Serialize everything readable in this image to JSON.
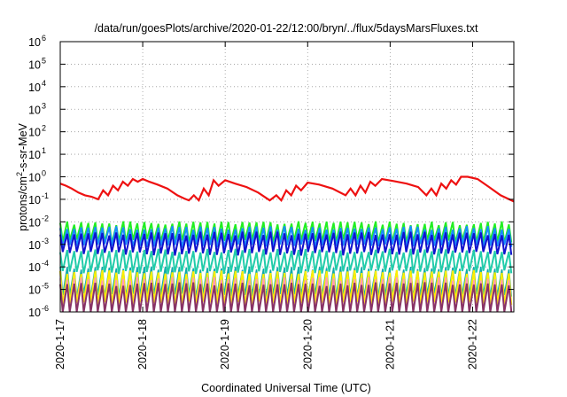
{
  "chart_data": {
    "type": "line",
    "title": "/data/run/goesPlots/archive/2020-01-22/12:00/bryn/../flux/5daysMarsFluxes.txt",
    "xlabel": "Coordinated Universal Time (UTC)",
    "ylabel": "protons/cm²-s-sr-MeV",
    "y_scale": "log",
    "ylim": [
      1e-06,
      1000000.0
    ],
    "xlim": [
      0,
      5.5
    ],
    "x_ticks": [
      {
        "value": 0,
        "label": "2020-1-17"
      },
      {
        "value": 1,
        "label": "2020-1-18"
      },
      {
        "value": 2,
        "label": "2020-1-19"
      },
      {
        "value": 3,
        "label": "2020-1-20"
      },
      {
        "value": 4,
        "label": "2020-1-21"
      },
      {
        "value": 5,
        "label": "2020-1-22"
      }
    ],
    "y_ticks": [
      {
        "exp": 6,
        "label": "10",
        "sup": "6"
      },
      {
        "exp": 5,
        "label": "10",
        "sup": "5"
      },
      {
        "exp": 4,
        "label": "10",
        "sup": "4"
      },
      {
        "exp": 3,
        "label": "10",
        "sup": "3"
      },
      {
        "exp": 2,
        "label": "10",
        "sup": "2"
      },
      {
        "exp": 1,
        "label": "10",
        "sup": "1"
      },
      {
        "exp": 0,
        "label": "10",
        "sup": "0"
      },
      {
        "exp": -1,
        "label": "10",
        "sup": "-1"
      },
      {
        "exp": -2,
        "label": "10",
        "sup": "-2"
      },
      {
        "exp": -3,
        "label": "10",
        "sup": "-3"
      },
      {
        "exp": -4,
        "label": "10",
        "sup": "-4"
      },
      {
        "exp": -5,
        "label": "10",
        "sup": "-5"
      },
      {
        "exp": -6,
        "label": "10",
        "sup": "-6"
      }
    ],
    "grid": true,
    "series": [
      {
        "color": "#ee1111",
        "width": 2.2,
        "x": [
          0.0,
          0.07,
          0.14,
          0.22,
          0.3,
          0.38,
          0.46,
          0.52,
          0.58,
          0.64,
          0.7,
          0.76,
          0.82,
          0.88,
          0.94,
          1.0,
          1.08,
          1.18,
          1.3,
          1.42,
          1.5,
          1.56,
          1.62,
          1.68,
          1.74,
          1.8,
          1.86,
          1.92,
          2.0,
          2.12,
          2.26,
          2.4,
          2.54,
          2.62,
          2.68,
          2.74,
          2.8,
          2.86,
          2.92,
          3.0,
          3.14,
          3.3,
          3.46,
          3.52,
          3.58,
          3.64,
          3.7,
          3.76,
          3.82,
          3.9,
          4.04,
          4.2,
          4.34,
          4.44,
          4.5,
          4.56,
          4.62,
          4.68,
          4.74,
          4.8,
          4.86,
          4.94,
          5.06,
          5.2,
          5.34,
          5.5
        ],
        "y": [
          0.5,
          0.4,
          0.3,
          0.2,
          0.15,
          0.13,
          0.1,
          0.25,
          0.15,
          0.4,
          0.25,
          0.6,
          0.4,
          0.8,
          0.6,
          0.8,
          0.6,
          0.45,
          0.3,
          0.15,
          0.11,
          0.09,
          0.15,
          0.09,
          0.3,
          0.15,
          0.7,
          0.4,
          0.7,
          0.5,
          0.35,
          0.2,
          0.09,
          0.15,
          0.09,
          0.25,
          0.15,
          0.4,
          0.25,
          0.55,
          0.45,
          0.3,
          0.15,
          0.3,
          0.15,
          0.4,
          0.2,
          0.6,
          0.4,
          0.8,
          0.65,
          0.5,
          0.35,
          0.15,
          0.3,
          0.15,
          0.5,
          0.3,
          0.7,
          0.45,
          1.0,
          1.0,
          0.8,
          0.35,
          0.15,
          0.08
        ]
      },
      {
        "color": "#22ee22",
        "width": 2,
        "base": 0.0035,
        "amp": 2.5,
        "seed": 1
      },
      {
        "color": "#1a8cff",
        "width": 2,
        "base": 0.0022,
        "amp": 2.5,
        "seed": 2
      },
      {
        "color": "#1111cc",
        "width": 2,
        "base": 0.0011,
        "amp": 2.8,
        "seed": 3
      },
      {
        "color": "#22ccaa",
        "width": 2,
        "base": 0.00018,
        "amp": 3.0,
        "seed": 4
      },
      {
        "color": "#11aaaa",
        "width": 1.6,
        "base": 2.2e-05,
        "amp": 4.0,
        "seed": 5
      },
      {
        "color": "#ffee00",
        "width": 2,
        "base": 1.2e-05,
        "amp": 5.0,
        "seed": 6
      },
      {
        "color": "#ff99bb",
        "width": 1.6,
        "base": 5e-06,
        "amp": 6.0,
        "seed": 7
      },
      {
        "color": "#883366",
        "width": 2,
        "base": 2.5e-06,
        "amp": 7.0,
        "seed": 8
      }
    ]
  }
}
